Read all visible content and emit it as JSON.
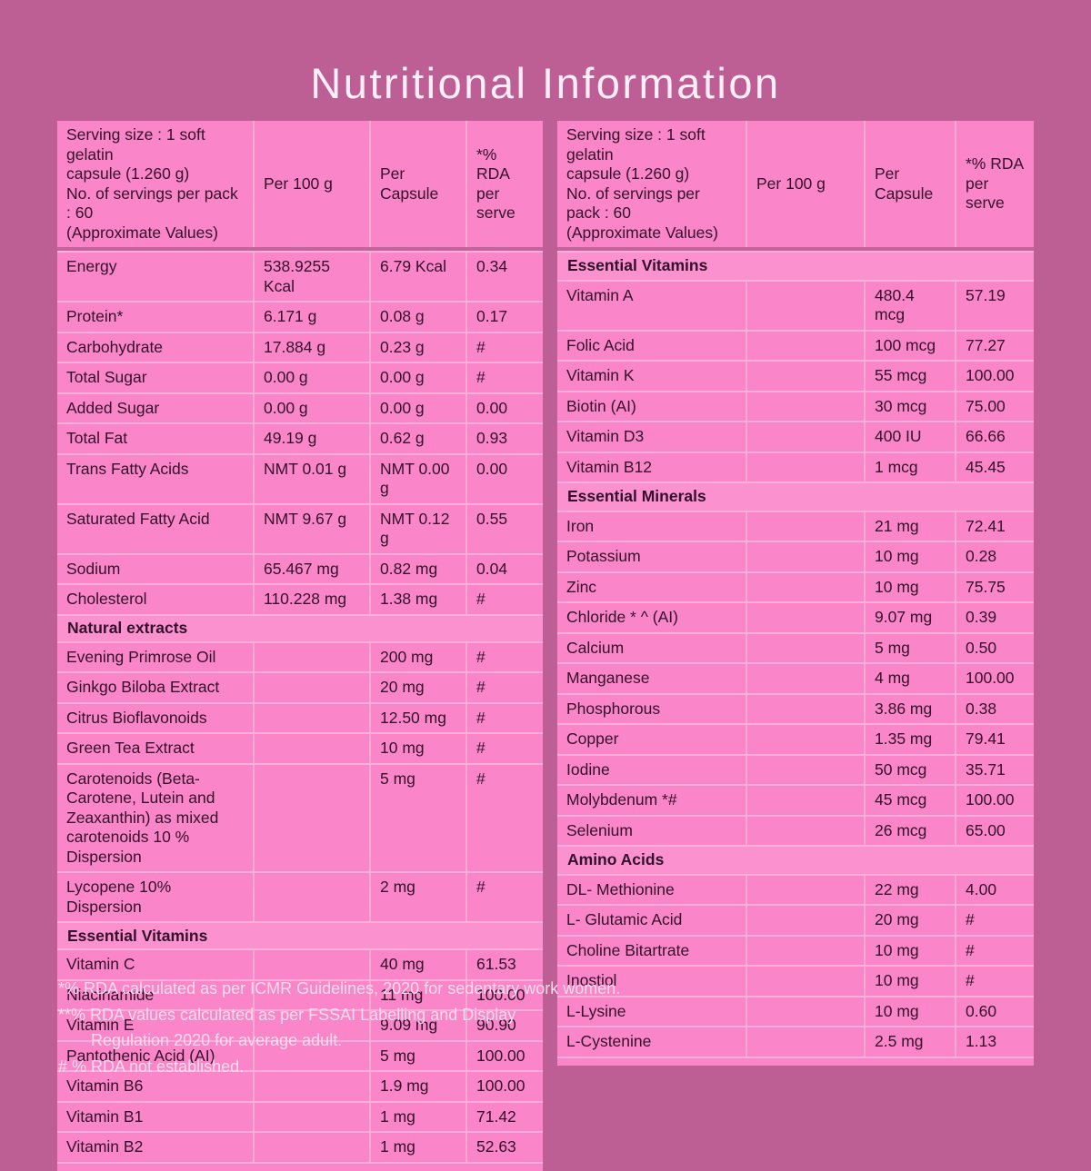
{
  "title": "Nutritional Information",
  "colors": {
    "page_background": "#bd5f95",
    "cell_pink": "#fa86c9",
    "section_band_pink": "#fb92cf",
    "separator_light": "#fbaedb",
    "header_rule_dark": "#c4639b",
    "text_dark": "#33102b",
    "text_light": "#f6ddeb"
  },
  "tables": [
    {
      "header": {
        "serving_info": "Serving size : 1 soft gelatin\ncapsule (1.260 g)\nNo. of servings per pack : 60\n(Approximate Values)",
        "columns": [
          "Per 100 g",
          "Per Capsule",
          "*% RDA per serve"
        ]
      },
      "sections": [
        {
          "title": "",
          "rows": [
            {
              "label": "Energy",
              "per_100g": "538.9255 Kcal",
              "per_capsule": "6.79 Kcal",
              "rda": "0.34"
            },
            {
              "label": "Protein*",
              "per_100g": "6.171 g",
              "per_capsule": "0.08 g",
              "rda": "0.17"
            },
            {
              "label": "Carbohydrate",
              "per_100g": "17.884 g",
              "per_capsule": "0.23 g",
              "rda": "#"
            },
            {
              "label": "Total Sugar",
              "per_100g": "0.00 g",
              "per_capsule": "0.00 g",
              "rda": "#"
            },
            {
              "label": "Added Sugar",
              "per_100g": "0.00 g",
              "per_capsule": "0.00 g",
              "rda": "0.00"
            },
            {
              "label": "Total Fat",
              "per_100g": "49.19 g",
              "per_capsule": "0.62 g",
              "rda": "0.93"
            },
            {
              "label": "Trans Fatty Acids",
              "per_100g": "NMT 0.01 g",
              "per_capsule": "NMT 0.00 g",
              "rda": "0.00"
            },
            {
              "label": "Saturated Fatty Acid",
              "per_100g": "NMT 9.67 g",
              "per_capsule": "NMT 0.12 g",
              "rda": "0.55"
            },
            {
              "label": "Sodium",
              "per_100g": "65.467 mg",
              "per_capsule": "0.82 mg",
              "rda": "0.04"
            },
            {
              "label": "Cholesterol",
              "per_100g": "110.228 mg",
              "per_capsule": "1.38 mg",
              "rda": "#"
            }
          ]
        },
        {
          "title": "Natural extracts",
          "rows": [
            {
              "label": "Evening Primrose Oil",
              "per_100g": "",
              "per_capsule": "200 mg",
              "rda": "#"
            },
            {
              "label": "Ginkgo Biloba Extract",
              "per_100g": "",
              "per_capsule": "20 mg",
              "rda": "#"
            },
            {
              "label": "Citrus Bioflavonoids",
              "per_100g": "",
              "per_capsule": "12.50 mg",
              "rda": "#"
            },
            {
              "label": "Green Tea Extract",
              "per_100g": "",
              "per_capsule": "10 mg",
              "rda": "#"
            },
            {
              "label": "Carotenoids (Beta-Carotene, Lutein and Zeaxanthin) as mixed carotenoids 10 % Dispersion",
              "per_100g": "",
              "per_capsule": "5 mg",
              "rda": "#"
            },
            {
              "label": "Lycopene 10% Dispersion",
              "per_100g": "",
              "per_capsule": "2 mg",
              "rda": "#"
            }
          ]
        },
        {
          "title": "Essential Vitamins",
          "rows": [
            {
              "label": "Vitamin C",
              "per_100g": "",
              "per_capsule": "40 mg",
              "rda": "61.53"
            },
            {
              "label": "Niacinamide",
              "per_100g": "",
              "per_capsule": "11 mg",
              "rda": "100.00"
            },
            {
              "label": "Vitamin E",
              "per_100g": "",
              "per_capsule": "9.09 mg",
              "rda": "90.90"
            },
            {
              "label": "Pantothenic Acid (AI)",
              "per_100g": "",
              "per_capsule": "5 mg",
              "rda": "100.00"
            },
            {
              "label": "Vitamin B6",
              "per_100g": "",
              "per_capsule": "1.9 mg",
              "rda": "100.00"
            },
            {
              "label": "Vitamin B1",
              "per_100g": "",
              "per_capsule": "1 mg",
              "rda": "71.42"
            },
            {
              "label": "Vitamin B2",
              "per_100g": "",
              "per_capsule": "1 mg",
              "rda": "52.63"
            }
          ]
        }
      ]
    },
    {
      "header": {
        "serving_info": "Serving size : 1 soft gelatin\ncapsule (1.260 g)\nNo. of servings per pack : 60\n(Approximate Values)",
        "columns": [
          "Per 100 g",
          "Per Capsule",
          "*% RDA per serve"
        ]
      },
      "sections": [
        {
          "title": "Essential Vitamins",
          "rows": [
            {
              "label": "Vitamin A",
              "per_100g": "",
              "per_capsule": "480.4 mcg",
              "rda": "57.19"
            },
            {
              "label": "Folic Acid",
              "per_100g": "",
              "per_capsule": "100 mcg",
              "rda": "77.27"
            },
            {
              "label": "Vitamin K",
              "per_100g": "",
              "per_capsule": "55 mcg",
              "rda": "100.00"
            },
            {
              "label": "Biotin (AI)",
              "per_100g": "",
              "per_capsule": "30 mcg",
              "rda": "75.00"
            },
            {
              "label": "Vitamin D3",
              "per_100g": "",
              "per_capsule": "400 IU",
              "rda": "66.66"
            },
            {
              "label": "Vitamin B12",
              "per_100g": "",
              "per_capsule": "1 mcg",
              "rda": "45.45"
            }
          ]
        },
        {
          "title": "Essential Minerals",
          "rows": [
            {
              "label": "Iron",
              "per_100g": "",
              "per_capsule": "21 mg",
              "rda": "72.41"
            },
            {
              "label": "Potassium",
              "per_100g": "",
              "per_capsule": "10 mg",
              "rda": "0.28"
            },
            {
              "label": "Zinc",
              "per_100g": "",
              "per_capsule": "10 mg",
              "rda": "75.75"
            },
            {
              "label": "Chloride * ^ (AI)",
              "per_100g": "",
              "per_capsule": "9.07 mg",
              "rda": "0.39"
            },
            {
              "label": "Calcium",
              "per_100g": "",
              "per_capsule": "5 mg",
              "rda": "0.50"
            },
            {
              "label": "Manganese",
              "per_100g": "",
              "per_capsule": "4 mg",
              "rda": "100.00"
            },
            {
              "label": "Phosphorous",
              "per_100g": "",
              "per_capsule": "3.86 mg",
              "rda": "0.38"
            },
            {
              "label": "Copper",
              "per_100g": "",
              "per_capsule": "1.35 mg",
              "rda": "79.41"
            },
            {
              "label": "Iodine",
              "per_100g": "",
              "per_capsule": "50 mcg",
              "rda": "35.71"
            },
            {
              "label": "Molybdenum *#",
              "per_100g": "",
              "per_capsule": "45 mcg",
              "rda": "100.00"
            },
            {
              "label": "Selenium",
              "per_100g": "",
              "per_capsule": "26 mcg",
              "rda": "65.00"
            }
          ]
        },
        {
          "title": "Amino Acids",
          "rows": [
            {
              "label": "DL- Methionine",
              "per_100g": "",
              "per_capsule": "22 mg",
              "rda": "4.00"
            },
            {
              "label": "L- Glutamic Acid",
              "per_100g": "",
              "per_capsule": "20 mg",
              "rda": "#"
            },
            {
              "label": "Choline Bitartrate",
              "per_100g": "",
              "per_capsule": "10 mg",
              "rda": "#"
            },
            {
              "label": "Inostiol",
              "per_100g": "",
              "per_capsule": "10 mg",
              "rda": "#"
            },
            {
              "label": "L-Lysine",
              "per_100g": "",
              "per_capsule": "10 mg",
              "rda": "0.60"
            },
            {
              "label": "L-Cystenine",
              "per_100g": "",
              "per_capsule": "2.5 mg",
              "rda": "1.13"
            }
          ]
        }
      ]
    }
  ],
  "footnotes": [
    "*% RDA calculated as per ICMR Guidelines, 2020 for sedentary work women.",
    "**% RDA values calculated as per FSSAI Labelling and Display",
    "Regulation 2020 for average adult.",
    "# % RDA not established."
  ]
}
